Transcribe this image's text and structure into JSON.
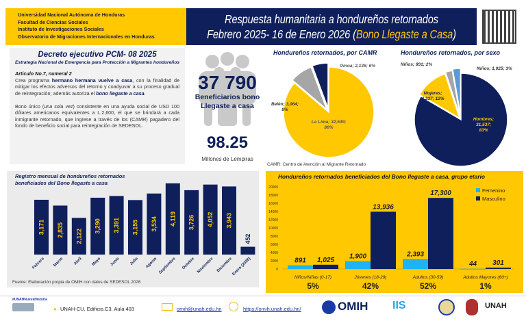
{
  "header": {
    "institutions": [
      "Universidad Nacional Autónoma de Honduras",
      "Facultad de Ciencias Sociales",
      "Instituto de Investigaciones Sociales",
      "Observatorio de Migraciones Internacionales en Honduras"
    ],
    "title_line1": "Respuesta humanitaria a hondureños retornados",
    "title_line2": "Febrero 2025- 16 de Enero 2026 (",
    "title_highlight": "Bono Llegaste a Casa",
    "title_close": ")",
    "qr_icon": "qr-code-icon"
  },
  "decree": {
    "title": "Decreto ejecutivo PCM- 08 2025",
    "subtitle": "Estrategia Nacional de Emergencia para Protección a Migrantes hondureños",
    "article": "Articulo No.7, numeral 2",
    "p1_a": "Crea programa ",
    "p1_b": "hermano hermana vuelve a casa",
    "p1_c": ", con la finalidad de mitigar los efectos adversos del retorno y coadyuvar a su proceso gradual de reintegración; además autoriza el ",
    "p1_d": "bono llegaste a casa",
    "p1_e": ".",
    "p2_a": "Bono único (",
    "p2_b": "una sola vez",
    "p2_c": ") consistente en una ayuda social de USD 100 dólares americanos equivalentes a L.2,600, el que se brindará a cada inmigrante retornado, que ingrese a través de los (CAMR) pagadero del fondo de beneficio social para reintegración de SEDESOL."
  },
  "stats": {
    "beneficiaries": "37 790",
    "beneficiaries_label": "Beneficiarios bono Llegaste a casa",
    "amount": "98.25",
    "amount_label": "Millones de Lempiras",
    "icon": "people-group-icon"
  },
  "camr_note": "CAMR: Centro de Atención al Migrante Retornado",
  "source": "Fuente: Elaboración propia de OMIH con datos de SEDESOL 2026",
  "chart_data": [
    {
      "type": "pie",
      "title": "Hondureños retornados, por CAMR",
      "slices": [
        {
          "label": "La Lima; 32,549; 86%",
          "name": "La Lima",
          "value": 32549,
          "pct": 86,
          "color": "#ffc800"
        },
        {
          "label": "Belén; 3,064; 8%",
          "name": "Belén",
          "value": 3064,
          "pct": 8,
          "color": "#a6a6a6"
        },
        {
          "label": "Omoa; 2,136; 6%",
          "name": "Omoa",
          "value": 2136,
          "pct": 6,
          "color": "#0e1f5b"
        }
      ]
    },
    {
      "type": "pie",
      "title": "Hondureños retornados, por sexo",
      "slices": [
        {
          "label": "Hombres; 31,537; 83%",
          "name": "Hombres",
          "value": 31537,
          "pct": 83,
          "color": "#0e1f5b"
        },
        {
          "label": "Mujeres; 4,337; 12%",
          "name": "Mujeres",
          "value": 4337,
          "pct": 12,
          "color": "#ffc800"
        },
        {
          "label": "Niños; 891; 2%",
          "name": "Niños",
          "value": 891,
          "pct": 2,
          "color": "#a6a6a6"
        },
        {
          "label": "Niños; 1,025; 3%",
          "name": "Niños",
          "value": 1025,
          "pct": 3,
          "color": "#5b9bd5"
        }
      ]
    },
    {
      "type": "bar",
      "title": "Registro mensual de hondureños retornados beneficiados del Bono llegaste a casa",
      "categories": [
        "Febrero",
        "Marzo",
        "Abril",
        "Mayo",
        "Junio",
        "Julio",
        "Agosto",
        "Septiembre",
        "Octubre",
        "Noviembre",
        "Diciembre",
        "Enero (2026)"
      ],
      "values": [
        3171,
        2835,
        2122,
        3290,
        3391,
        3155,
        3534,
        4119,
        3726,
        4052,
        3943,
        452
      ],
      "labels": [
        "3,171",
        "2,835",
        "2,122",
        "3,290",
        "3,391",
        "3,155",
        "3,534",
        "4,119",
        "3,726",
        "4,052",
        "3,943",
        "452"
      ],
      "color": "#0e1f5b",
      "label_color": "#ffc800",
      "grid": false
    },
    {
      "type": "bar",
      "title": "Hondureños retornados beneficiados del Bono llegaste a casa, grupo etario",
      "categories": [
        "Niños/Niñas (0-17)",
        "Jóvenes (18-29)",
        "Adultos (30-59)",
        "Adultos Mayores (60+)"
      ],
      "percentages": [
        "5%",
        "42%",
        "52%",
        "1%"
      ],
      "series": [
        {
          "name": "Femenino",
          "values": [
            891,
            1900,
            2393,
            44
          ],
          "labels": [
            "891",
            "1,900",
            "2,393",
            "44"
          ],
          "color": "#1fb4f0"
        },
        {
          "name": "Masculino",
          "values": [
            1025,
            13936,
            17300,
            301
          ],
          "labels": [
            "1,025",
            "13,936",
            "17,300",
            "301"
          ],
          "color": "#0e1f5b"
        }
      ],
      "ylim": [
        0,
        20000
      ],
      "yticks": [
        "0",
        "2000",
        "4000",
        "6000",
        "8000",
        "10000",
        "12000",
        "14000",
        "16000",
        "18000",
        "20000"
      ],
      "legend": "top-right",
      "grid": false
    }
  ],
  "footer": {
    "hashtag": "#UNAHNuevaHistoria",
    "address": "UNAH-CU, Edificio.C3, Aula 403",
    "email": "omih@unah.edu.hn",
    "website": "https://omih.unah.edu.hn/",
    "omih": "OMIH",
    "iis": "IIS",
    "unah": "UNAH"
  }
}
